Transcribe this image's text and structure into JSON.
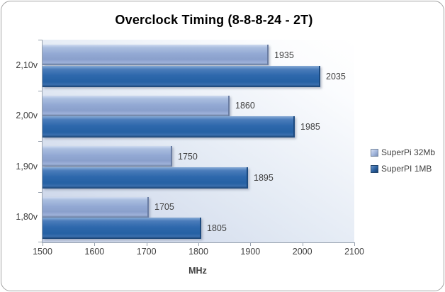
{
  "frame": {
    "border_color": "#a3a3a3",
    "background": "#ffffff"
  },
  "chart_data": {
    "type": "bar",
    "orientation": "horizontal",
    "title": "Overclock Timing (8-8-8-24 - 2T)",
    "xlabel": "MHz",
    "xlim": [
      1500,
      2100
    ],
    "xticks": [
      "1500",
      "1600",
      "1700",
      "1800",
      "1900",
      "2000",
      "2100"
    ],
    "categories": [
      "2,10v",
      "2,00v",
      "1,90v",
      "1,80v"
    ],
    "series": [
      {
        "name": "SuperPi 32Mb",
        "color": "#8FA5D2",
        "values": [
          1935,
          1860,
          1750,
          1705
        ]
      },
      {
        "name": "SuperPI 1MB",
        "color": "#2763A9",
        "values": [
          2035,
          1985,
          1895,
          1805
        ]
      }
    ],
    "value_labels": true,
    "legend_position": "right",
    "grid": false,
    "plot_bg_gradient": [
      "#c9d3e8",
      "#ffffff"
    ],
    "axis_color": "#97a1ae",
    "text_color": "#3f3f3f"
  }
}
